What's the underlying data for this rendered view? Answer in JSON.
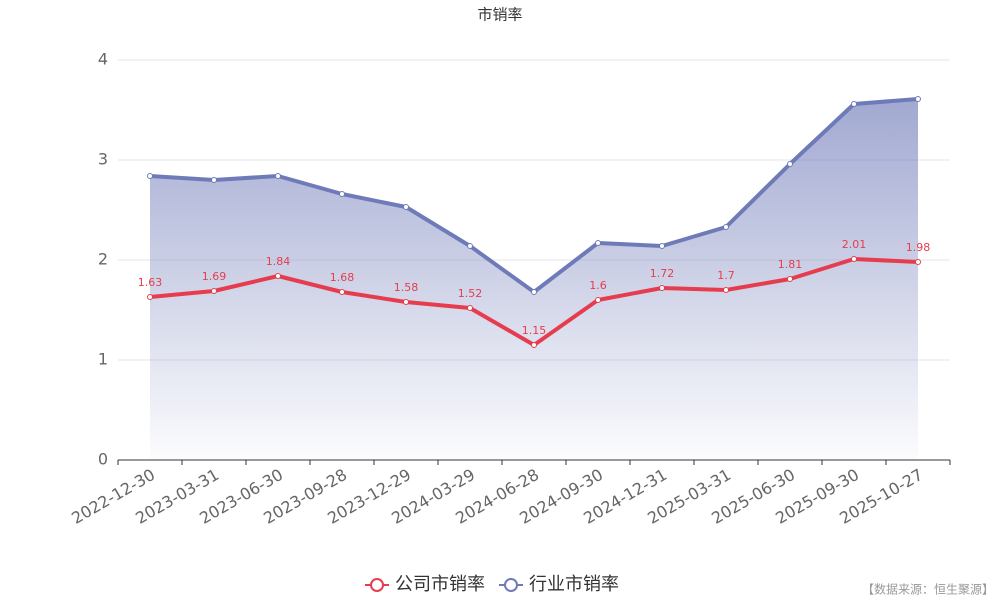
{
  "chart_data": {
    "type": "line",
    "title": "市销率",
    "categories": [
      "2022-12-30",
      "2023-03-31",
      "2023-06-30",
      "2023-09-28",
      "2023-12-29",
      "2024-03-29",
      "2024-06-28",
      "2024-09-30",
      "2024-12-31",
      "2025-03-31",
      "2025-06-30",
      "2025-09-30",
      "2025-10-27"
    ],
    "series": [
      {
        "name": "公司市销率",
        "color": "#e63d4e",
        "show_labels": true,
        "area": false,
        "values": [
          1.63,
          1.69,
          1.84,
          1.68,
          1.58,
          1.52,
          1.15,
          1.6,
          1.72,
          1.7,
          1.81,
          2.01,
          1.98
        ]
      },
      {
        "name": "行业市销率",
        "color": "#6f7ab8",
        "show_labels": false,
        "area": true,
        "values": [
          2.84,
          2.8,
          2.84,
          2.66,
          2.53,
          2.14,
          1.68,
          2.17,
          2.14,
          2.33,
          2.96,
          3.56,
          3.61
        ]
      }
    ],
    "ylim": [
      0,
      4
    ],
    "yticks": [
      0,
      1,
      2,
      3,
      4
    ],
    "grid": true,
    "source": "【数据来源：恒生聚源】"
  }
}
